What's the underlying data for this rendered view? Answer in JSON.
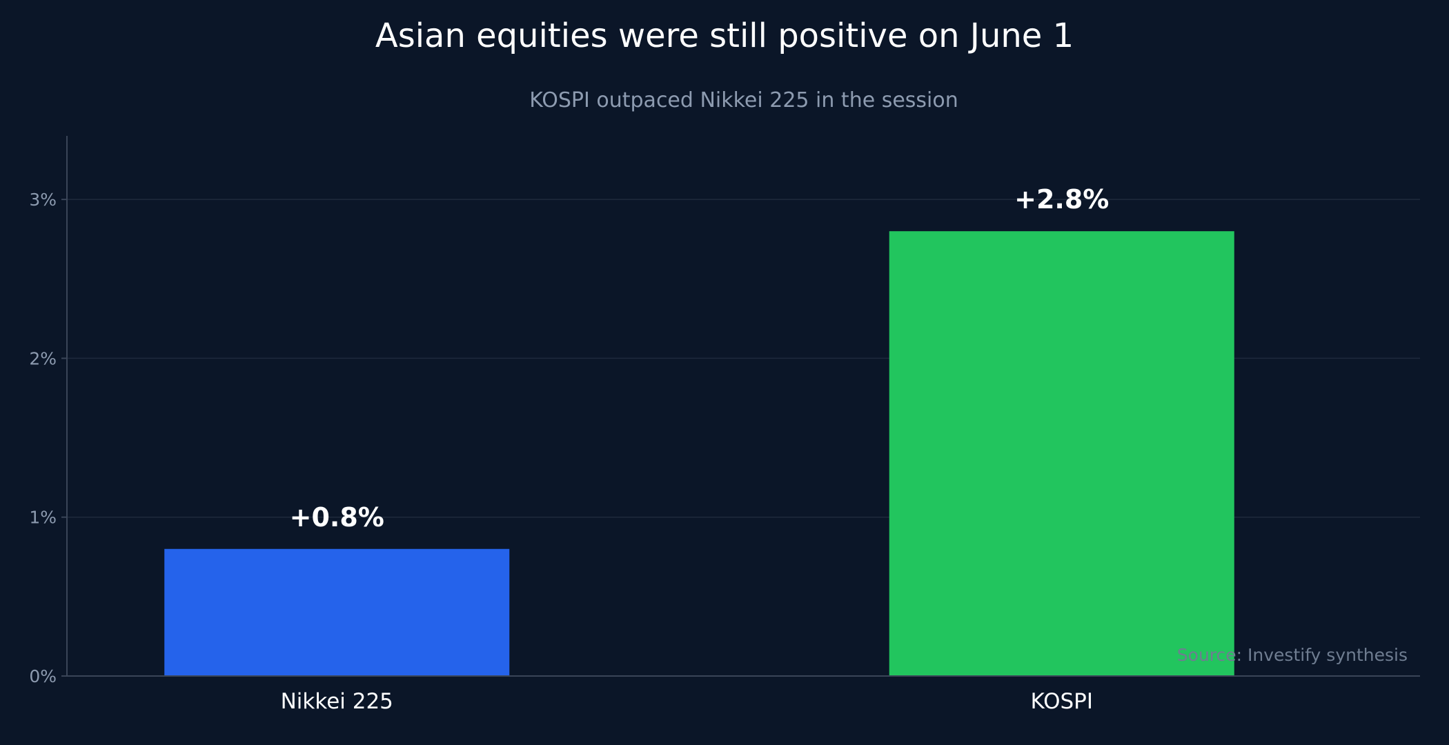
{
  "chart_data": {
    "type": "bar",
    "title": "Asian equities were still positive on June 1",
    "subtitle": "KOSPI outpaced Nikkei 225 in the session",
    "xlabel": "",
    "ylabel": "",
    "categories": [
      "Nikkei 225",
      "KOSPI"
    ],
    "values": [
      0.8,
      2.8
    ],
    "data_labels": [
      "+0.8%",
      "+2.8%"
    ],
    "bar_colors": [
      "#2563eb",
      "#22c55e"
    ],
    "y_ticks": [
      0,
      1,
      2,
      3
    ],
    "y_tick_labels": [
      "0%",
      "1%",
      "2%",
      "3%"
    ],
    "ylim": [
      0,
      3.4
    ],
    "grid": true,
    "legend": "none",
    "source": "Source: Investify synthesis"
  },
  "colors": {
    "background": "#0b1628",
    "grid": "#1f2a3c",
    "axis": "#3a4558",
    "tick_text": "#8d9bb0",
    "category_text": "#ffffff",
    "data_label_text": "#ffffff"
  }
}
